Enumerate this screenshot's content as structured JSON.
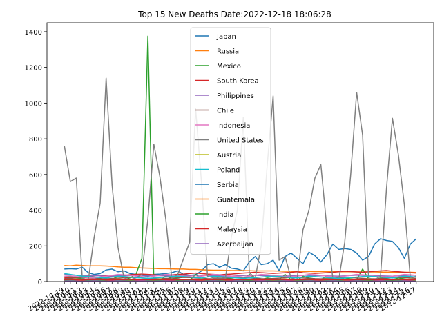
{
  "chart_data": {
    "type": "line",
    "title": "Top 15 New Deaths Date:2022-12-18 18:06:28",
    "xlabel": "",
    "ylabel": "",
    "ylim": [
      0,
      1450
    ],
    "yticks": [
      0,
      200,
      400,
      600,
      800,
      1000,
      1200,
      1400
    ],
    "grid": false,
    "legend_position": "top-center",
    "x_start_date": "2022-10-19",
    "x_end_date": "2022-12-17",
    "x_tick_labels_note": "dense overlapping date labels rotated ~30deg (daily dates 2022-10-19 … 2022-12-17)",
    "series": [
      {
        "name": "Japan",
        "color": "#1f77b4",
        "values": [
          70,
          72,
          70,
          80,
          50,
          40,
          45,
          65,
          70,
          55,
          60,
          45,
          40,
          35,
          30,
          40,
          42,
          45,
          50,
          60,
          40,
          35,
          38,
          60,
          95,
          100,
          80,
          95,
          75,
          70,
          60,
          110,
          140,
          95,
          100,
          120,
          60,
          140,
          160,
          130,
          100,
          165,
          145,
          110,
          150,
          210,
          180,
          185,
          180,
          160,
          120,
          140,
          210,
          240,
          230,
          225,
          190,
          130,
          210,
          240
        ]
      },
      {
        "name": "Russia",
        "color": "#ff7f0e",
        "values": [
          90,
          88,
          92,
          90,
          88,
          88,
          88,
          87,
          85,
          82,
          80,
          80,
          78,
          76,
          75,
          74,
          72,
          72,
          71,
          70,
          70,
          68,
          68,
          66,
          65,
          64,
          64,
          63,
          62,
          62,
          62,
          61,
          60,
          60,
          60,
          60,
          59,
          58,
          58,
          58,
          57,
          57,
          56,
          56,
          56,
          55,
          55,
          55,
          55,
          54,
          54,
          54,
          54,
          53,
          53,
          52,
          52,
          52,
          52,
          51
        ]
      },
      {
        "name": "Mexico",
        "color": "#2ca02c",
        "values": [
          25,
          30,
          20,
          15,
          10,
          8,
          20,
          25,
          30,
          15,
          10,
          20,
          40,
          130,
          1375,
          10,
          5,
          30,
          20,
          15,
          10,
          5,
          40,
          15,
          10,
          5,
          30,
          20,
          15,
          10,
          5,
          40,
          15,
          10,
          20,
          15,
          10,
          40,
          10,
          5,
          30,
          20,
          15,
          10,
          30,
          15,
          10,
          20,
          15,
          10,
          70,
          15,
          10,
          20,
          15,
          10,
          20,
          15,
          10,
          5
        ]
      },
      {
        "name": "South Korea",
        "color": "#d62728",
        "values": [
          20,
          22,
          25,
          28,
          30,
          32,
          35,
          33,
          30,
          32,
          35,
          38,
          40,
          42,
          40,
          38,
          35,
          36,
          38,
          40,
          42,
          45,
          48,
          45,
          42,
          40,
          38,
          40,
          42,
          45,
          48,
          50,
          52,
          50,
          48,
          46,
          48,
          50,
          52,
          55,
          50,
          48,
          46,
          48,
          50,
          52,
          55,
          58,
          56,
          54,
          52,
          55,
          58,
          60,
          62,
          58,
          55,
          52,
          50,
          48
        ]
      },
      {
        "name": "Philippines",
        "color": "#9467bd",
        "values": [
          40,
          38,
          36,
          35,
          34,
          33,
          32,
          30,
          31,
          32,
          33,
          34,
          35,
          36,
          35,
          34,
          33,
          32,
          31,
          30,
          32,
          34,
          36,
          35,
          34,
          33,
          32,
          31,
          30,
          32,
          34,
          36,
          35,
          34,
          33,
          32,
          31,
          30,
          32,
          34,
          36,
          35,
          34,
          33,
          32,
          31,
          30,
          32,
          34,
          36,
          35,
          34,
          33,
          32,
          31,
          30,
          32,
          34,
          36,
          35
        ]
      },
      {
        "name": "Chile",
        "color": "#8c564b",
        "values": [
          15,
          18,
          20,
          22,
          20,
          18,
          16,
          15,
          17,
          19,
          21,
          23,
          22,
          20,
          18,
          16,
          15,
          17,
          19,
          21,
          23,
          22,
          20,
          18,
          16,
          15,
          17,
          19,
          21,
          23,
          22,
          20,
          18,
          16,
          15,
          17,
          19,
          21,
          23,
          22,
          20,
          18,
          16,
          15,
          17,
          19,
          21,
          23,
          22,
          20,
          18,
          16,
          15,
          17,
          19,
          21,
          23,
          22,
          20,
          18
        ]
      },
      {
        "name": "Indonesia",
        "color": "#e377c2",
        "values": [
          30,
          32,
          28,
          25,
          22,
          20,
          25,
          30,
          35,
          40,
          38,
          35,
          30,
          28,
          25,
          30,
          35,
          40,
          38,
          35,
          30,
          28,
          25,
          30,
          35,
          40,
          38,
          35,
          30,
          28,
          25,
          30,
          35,
          40,
          38,
          35,
          30,
          28,
          25,
          30,
          35,
          40,
          38,
          35,
          30,
          28,
          25,
          30,
          35,
          40,
          38,
          35,
          30,
          28,
          25,
          30,
          35,
          40,
          38,
          35
        ]
      },
      {
        "name": "United States",
        "color": "#7f7f7f",
        "values": [
          760,
          560,
          580,
          20,
          5,
          250,
          440,
          1140,
          540,
          190,
          20,
          10,
          20,
          40,
          350,
          770,
          590,
          350,
          20,
          40,
          130,
          220,
          970,
          550,
          30,
          20,
          20,
          20,
          250,
          400,
          920,
          50,
          20,
          200,
          650,
          1040,
          120,
          140,
          20,
          10,
          290,
          400,
          580,
          655,
          300,
          20,
          10,
          220,
          600,
          1060,
          820,
          20,
          10,
          30,
          520,
          915,
          710,
          430,
          20,
          30
        ]
      },
      {
        "name": "Austria",
        "color": "#bcbd22",
        "values": [
          10,
          12,
          14,
          12,
          10,
          9,
          8,
          10,
          12,
          14,
          12,
          10,
          9,
          8,
          10,
          12,
          14,
          12,
          10,
          9,
          8,
          10,
          12,
          14,
          12,
          10,
          9,
          8,
          10,
          12,
          14,
          12,
          10,
          9,
          8,
          10,
          12,
          14,
          12,
          10,
          9,
          8,
          10,
          12,
          14,
          12,
          10,
          9,
          8,
          10,
          12,
          14,
          12,
          10,
          9,
          8,
          10,
          12,
          14,
          12
        ]
      },
      {
        "name": "Poland",
        "color": "#17becf",
        "values": [
          45,
          40,
          35,
          30,
          28,
          25,
          22,
          20,
          25,
          30,
          28,
          25,
          22,
          20,
          18,
          20,
          22,
          25,
          28,
          30,
          28,
          25,
          22,
          20,
          25,
          30,
          28,
          25,
          22,
          20,
          18,
          20,
          22,
          25,
          28,
          30,
          28,
          25,
          22,
          20,
          25,
          30,
          28,
          25,
          22,
          20,
          18,
          20,
          22,
          25,
          28,
          30,
          28,
          25,
          22,
          20,
          25,
          30,
          28,
          25
        ]
      },
      {
        "name": "Serbia",
        "color": "#1f77b4",
        "values": [
          10,
          12,
          11,
          10,
          9,
          10,
          11,
          12,
          11,
          10,
          9,
          10,
          11,
          12,
          11,
          10,
          9,
          10,
          11,
          12,
          11,
          10,
          9,
          10,
          11,
          12,
          11,
          10,
          9,
          10,
          11,
          12,
          11,
          10,
          9,
          10,
          11,
          12,
          11,
          10,
          9,
          10,
          11,
          12,
          11,
          10,
          9,
          10,
          11,
          12,
          11,
          10,
          9,
          10,
          11,
          12,
          11,
          10,
          9,
          10
        ]
      },
      {
        "name": "Guatemala",
        "color": "#ff7f0e",
        "values": [
          5,
          4,
          6,
          5,
          4,
          6,
          5,
          4,
          6,
          5,
          4,
          6,
          5,
          4,
          6,
          5,
          4,
          6,
          5,
          4,
          6,
          5,
          4,
          6,
          5,
          4,
          6,
          5,
          4,
          6,
          5,
          4,
          6,
          5,
          4,
          6,
          5,
          4,
          6,
          5,
          4,
          6,
          5,
          4,
          6,
          5,
          4,
          6,
          5,
          4,
          6,
          5,
          4,
          6,
          5,
          4,
          6,
          5,
          4,
          6
        ]
      },
      {
        "name": "India",
        "color": "#2ca02c",
        "values": [
          8,
          7,
          9,
          8,
          7,
          9,
          8,
          7,
          9,
          8,
          7,
          9,
          8,
          7,
          9,
          8,
          7,
          9,
          8,
          7,
          9,
          8,
          7,
          9,
          8,
          7,
          9,
          8,
          7,
          9,
          8,
          7,
          9,
          8,
          7,
          9,
          8,
          7,
          9,
          8,
          7,
          9,
          8,
          7,
          9,
          8,
          7,
          9,
          8,
          7,
          9,
          8,
          7,
          9,
          8,
          7,
          9,
          8,
          7,
          9
        ]
      },
      {
        "name": "Malaysia",
        "color": "#d62728",
        "values": [
          10,
          12,
          9,
          8,
          11,
          10,
          12,
          9,
          8,
          11,
          10,
          12,
          9,
          8,
          11,
          10,
          12,
          9,
          8,
          11,
          10,
          12,
          9,
          8,
          11,
          10,
          12,
          9,
          8,
          11,
          10,
          12,
          9,
          8,
          11,
          10,
          12,
          9,
          8,
          11,
          10,
          12,
          9,
          8,
          11,
          10,
          12,
          9,
          8,
          11,
          10,
          12,
          9,
          8,
          11,
          10,
          12,
          9,
          8,
          11
        ]
      },
      {
        "name": "Azerbaijan",
        "color": "#9467bd",
        "values": [
          3,
          4,
          3,
          2,
          3,
          4,
          3,
          2,
          3,
          4,
          3,
          2,
          3,
          4,
          3,
          2,
          3,
          4,
          3,
          2,
          3,
          4,
          3,
          2,
          3,
          4,
          3,
          2,
          3,
          4,
          3,
          2,
          3,
          4,
          3,
          2,
          3,
          4,
          3,
          2,
          3,
          4,
          3,
          2,
          3,
          4,
          3,
          2,
          3,
          4,
          3,
          2,
          3,
          4,
          3,
          2,
          3,
          4,
          3,
          2
        ]
      }
    ]
  }
}
